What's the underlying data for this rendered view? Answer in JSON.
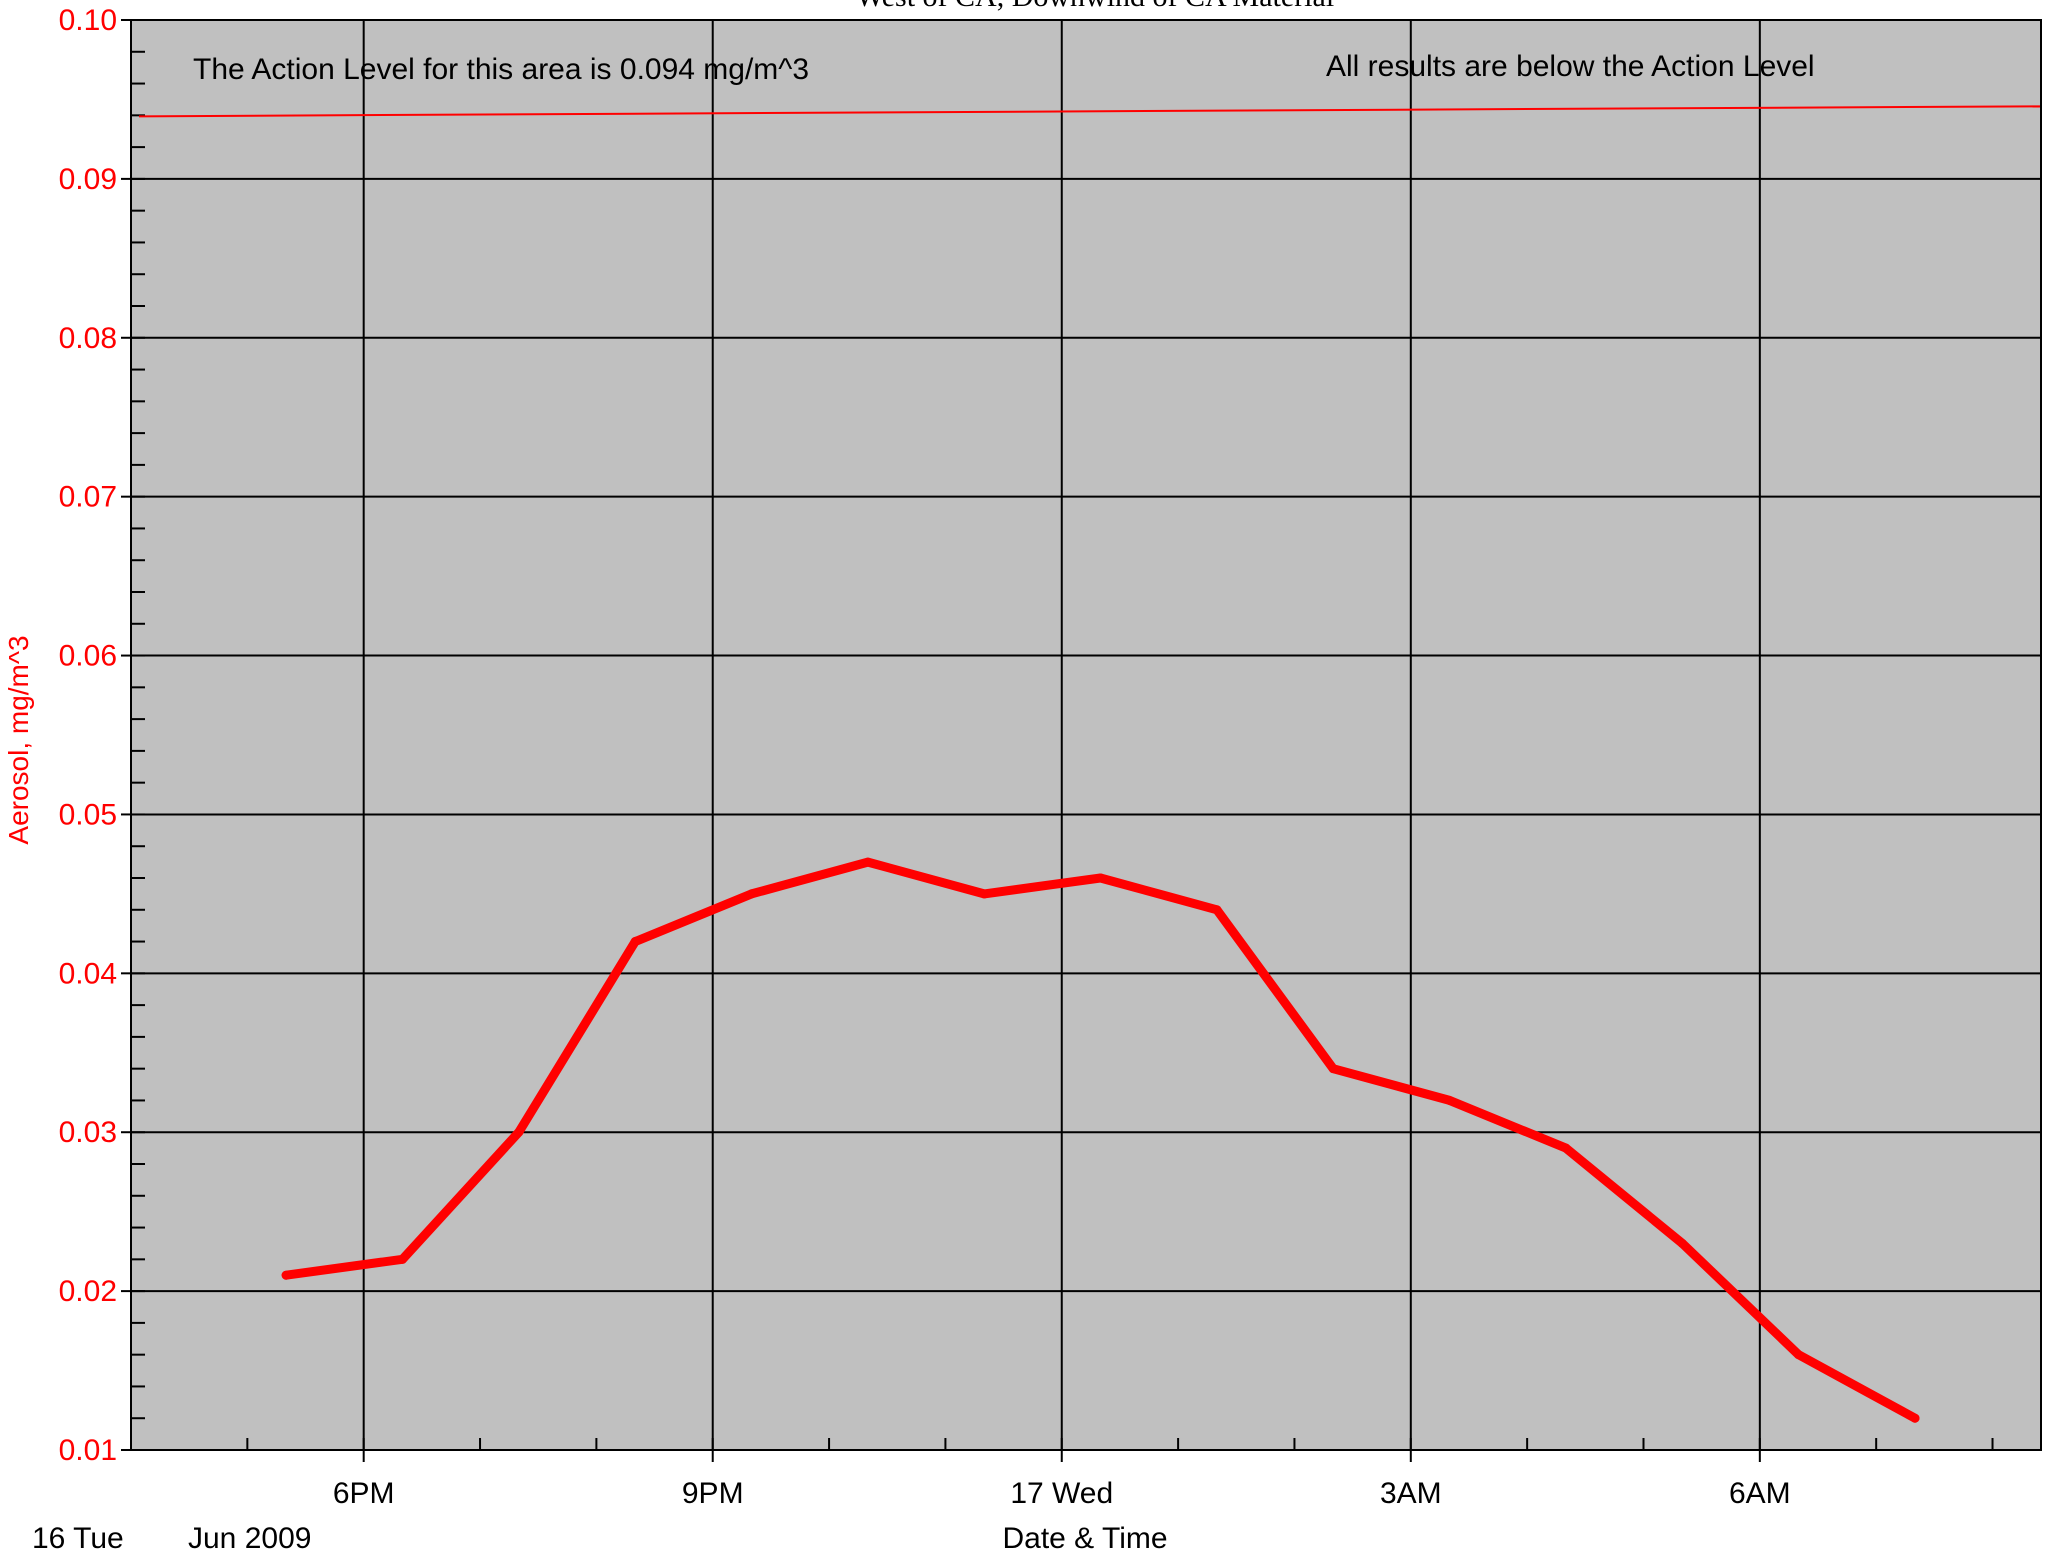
{
  "chart_data": {
    "type": "line",
    "title": "West of CA, Downwind of CA Material",
    "ylabel": "Aerosol, mg/m^3",
    "xlabel": "Date & Time",
    "x_start_label": "16 Tue",
    "x_start_label_2": "Jun 2009",
    "ylim": [
      0.01,
      0.1
    ],
    "y_ticks": [
      "0.01",
      "0.02",
      "0.03",
      "0.04",
      "0.05",
      "0.06",
      "0.07",
      "0.08",
      "0.09",
      "0.10"
    ],
    "x_range": [
      "2009-06-16 16:00",
      "2009-06-17 08:25"
    ],
    "x_ticks": [
      {
        "time": "2009-06-16 18:00",
        "label": "6PM"
      },
      {
        "time": "2009-06-16 21:00",
        "label": "9PM"
      },
      {
        "time": "2009-06-17 00:00",
        "label": "17 Wed"
      },
      {
        "time": "2009-06-17 03:00",
        "label": "3AM"
      },
      {
        "time": "2009-06-17 06:00",
        "label": "6AM"
      }
    ],
    "grid": true,
    "background_color": "#c0c0c0",
    "series_color": "#ff0000",
    "series": [
      {
        "x": [
          "2009-06-16 17:20",
          "2009-06-16 18:20",
          "2009-06-16 19:20",
          "2009-06-16 20:20",
          "2009-06-16 21:20",
          "2009-06-16 22:20",
          "2009-06-16 23:20",
          "2009-06-17 00:20",
          "2009-06-17 01:20",
          "2009-06-17 02:20",
          "2009-06-17 03:20",
          "2009-06-17 04:20",
          "2009-06-17 05:20",
          "2009-06-17 06:20",
          "2009-06-17 07:20"
        ],
        "values": [
          0.021,
          0.022,
          0.03,
          0.042,
          0.045,
          0.047,
          0.045,
          0.046,
          0.044,
          0.034,
          0.032,
          0.029,
          0.023,
          0.016,
          0.012
        ]
      }
    ],
    "reference_line": {
      "value": 0.094,
      "color": "#ff0000"
    },
    "annotations": [
      {
        "text": "The Action Level for this area is 0.094 mg/m^3"
      },
      {
        "text": "All results are below the Action Level"
      }
    ]
  }
}
